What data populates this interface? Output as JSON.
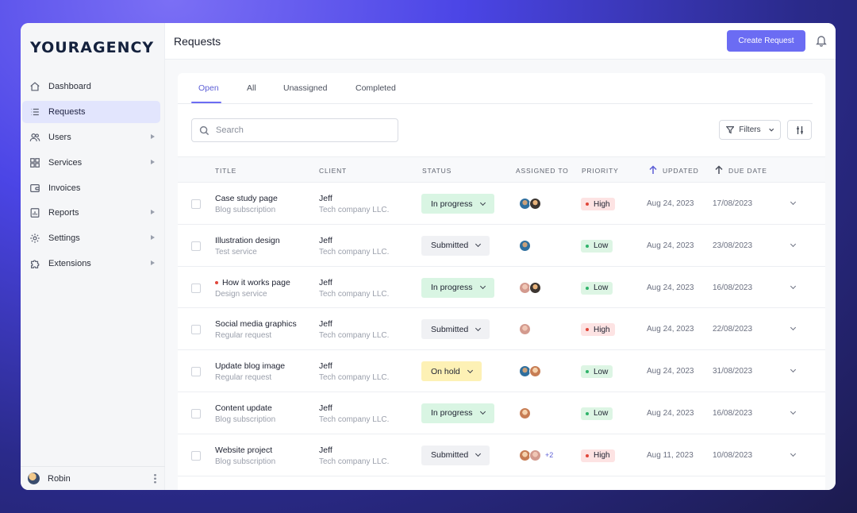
{
  "sidebar": {
    "logo": "YOURAGENCY",
    "items": [
      {
        "label": "Dashboard",
        "icon": "home-icon",
        "active": false,
        "submenu": false
      },
      {
        "label": "Requests",
        "icon": "list-icon",
        "active": true,
        "submenu": false
      },
      {
        "label": "Users",
        "icon": "users-icon",
        "active": false,
        "submenu": true
      },
      {
        "label": "Services",
        "icon": "grid-icon",
        "active": false,
        "submenu": true
      },
      {
        "label": "Invoices",
        "icon": "wallet-icon",
        "active": false,
        "submenu": false
      },
      {
        "label": "Reports",
        "icon": "report-icon",
        "active": false,
        "submenu": true
      },
      {
        "label": "Settings",
        "icon": "gear-icon",
        "active": false,
        "submenu": true
      },
      {
        "label": "Extensions",
        "icon": "puzzle-icon",
        "active": false,
        "submenu": true
      }
    ],
    "user": {
      "name": "Robin"
    }
  },
  "header": {
    "title": "Requests",
    "create_label": "Create Request"
  },
  "tabs": [
    "Open",
    "All",
    "Unassigned",
    "Completed"
  ],
  "search": {
    "placeholder": "Search",
    "value": ""
  },
  "filters_label": "Filters",
  "table": {
    "columns": {
      "title": "TITLE",
      "client": "CLIENT",
      "status": "STATUS",
      "assigned": "ASSIGNED TO",
      "priority": "PRIORITY",
      "updated": "UPDATED",
      "due": "DUE DATE"
    },
    "rows": [
      {
        "title": "Case study page",
        "subtitle": "Blog subscription",
        "client": "Jeff",
        "company": "Tech company LLC.",
        "status": "In progress",
        "avatars": [
          "a1",
          "a2"
        ],
        "more": "",
        "priority": "High",
        "updated": "Aug 24, 2023",
        "due": "17/08/2023",
        "unread": false
      },
      {
        "title": "Illustration design",
        "subtitle": "Test service",
        "client": "Jeff",
        "company": "Tech company LLC.",
        "status": "Submitted",
        "avatars": [
          "a1"
        ],
        "more": "",
        "priority": "Low",
        "updated": "Aug 24, 2023",
        "due": "23/08/2023",
        "unread": false
      },
      {
        "title": "How it works page",
        "subtitle": "Design service",
        "client": "Jeff",
        "company": "Tech company LLC.",
        "status": "In progress",
        "avatars": [
          "a3",
          "a2"
        ],
        "more": "",
        "priority": "Low",
        "updated": "Aug 24, 2023",
        "due": "16/08/2023",
        "unread": true
      },
      {
        "title": "Social media graphics",
        "subtitle": "Regular request",
        "client": "Jeff",
        "company": "Tech company LLC.",
        "status": "Submitted",
        "avatars": [
          "a3"
        ],
        "more": "",
        "priority": "High",
        "updated": "Aug 24, 2023",
        "due": "22/08/2023",
        "unread": false
      },
      {
        "title": "Update blog image",
        "subtitle": "Regular request",
        "client": "Jeff",
        "company": "Tech company LLC.",
        "status": "On hold",
        "avatars": [
          "a1",
          "a4"
        ],
        "more": "",
        "priority": "Low",
        "updated": "Aug 24, 2023",
        "due": "31/08/2023",
        "unread": false
      },
      {
        "title": "Content update",
        "subtitle": "Blog subscription",
        "client": "Jeff",
        "company": "Tech company LLC.",
        "status": "In progress",
        "avatars": [
          "a4"
        ],
        "more": "",
        "priority": "Low",
        "updated": "Aug 24, 2023",
        "due": "16/08/2023",
        "unread": false
      },
      {
        "title": "Website project",
        "subtitle": "Blog subscription",
        "client": "Jeff",
        "company": "Tech company LLC.",
        "status": "Submitted",
        "avatars": [
          "a4",
          "a3"
        ],
        "more": "+2",
        "priority": "High",
        "updated": "Aug 11, 2023",
        "due": "10/08/2023",
        "unread": false
      }
    ]
  },
  "colors": {
    "accent": "#6b6cf3",
    "status_in_progress": "#d9f5e3",
    "status_submitted": "#f0f1f4",
    "status_on_hold": "#fdf1b5",
    "priority_high_bg": "#fde3e3",
    "priority_high_dot": "#e0463a",
    "priority_low_bg": "#ddf5e4",
    "priority_low_dot": "#2fb36a"
  }
}
